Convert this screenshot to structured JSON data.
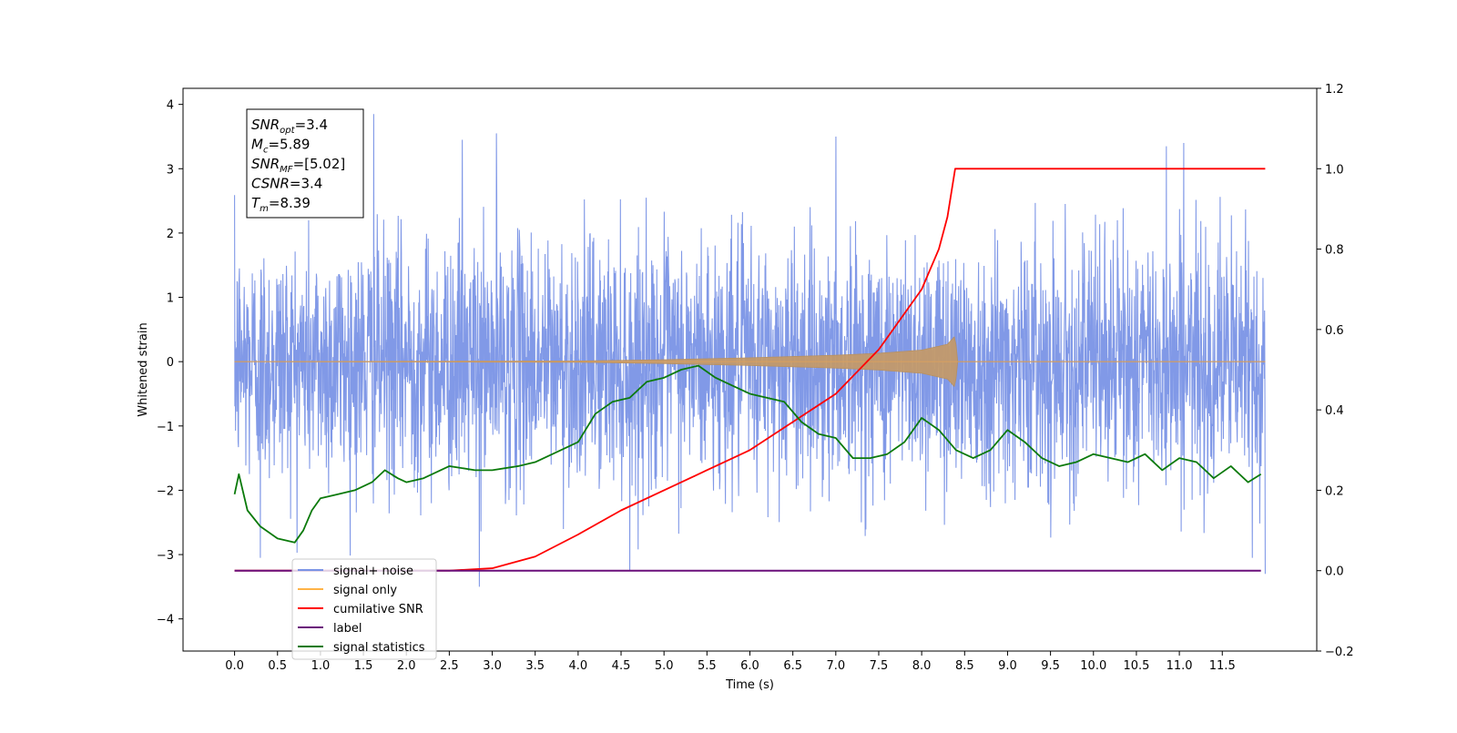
{
  "chart_data": {
    "type": "line",
    "xlabel": "Time (s)",
    "ylabel_left": "Whitened strain",
    "ylabel_right": "",
    "xlim": [
      -0.6,
      12.6
    ],
    "ylim_left": [
      -4.5,
      4.25
    ],
    "ylim_right": [
      -0.2,
      1.2
    ],
    "x_ticks": [
      "0.0",
      "0.5",
      "1.0",
      "1.5",
      "2.0",
      "2.5",
      "3.0",
      "3.5",
      "4.0",
      "4.5",
      "5.0",
      "5.5",
      "6.0",
      "6.5",
      "7.0",
      "7.5",
      "8.0",
      "8.5",
      "9.0",
      "9.5",
      "10.0",
      "10.5",
      "11.0",
      "11.5"
    ],
    "y_left_ticks": [
      "4",
      "3",
      "2",
      "1",
      "0",
      "−1",
      "−2",
      "−3",
      "−4"
    ],
    "y_right_ticks": [
      "1.2",
      "1.0",
      "0.8",
      "0.6",
      "0.4",
      "0.2",
      "0.0",
      "−0.2"
    ],
    "grid": false,
    "legend_position": "lower-left",
    "annotation_box": {
      "lines": [
        {
          "label_main": "SNR",
          "label_sub": "opt",
          "value": "=3.4"
        },
        {
          "label_main": "M",
          "label_sub": "c",
          "value": "=5.89"
        },
        {
          "label_main": "SNR",
          "label_sub": "MF",
          "value": "=[5.02]"
        },
        {
          "label_main": "CSNR",
          "label_sub": "",
          "value": "=3.4"
        },
        {
          "label_main": "T",
          "label_sub": "m",
          "value": "=8.39"
        }
      ]
    },
    "series": [
      {
        "name": "signal+ noise",
        "axis": "left",
        "color": "#7a93e6",
        "style": "dense noise around 0, typical amplitude ±1.3, occasional spikes",
        "x_range": [
          0.0,
          12.0
        ],
        "peaks": [
          {
            "x": 1.62,
            "y": 3.85
          },
          {
            "x": 2.65,
            "y": 3.45
          },
          {
            "x": 3.05,
            "y": 3.55
          },
          {
            "x": 7.0,
            "y": 3.5
          },
          {
            "x": 10.85,
            "y": 3.35
          },
          {
            "x": 11.05,
            "y": 3.4
          },
          {
            "x": 2.85,
            "y": -3.5
          },
          {
            "x": 4.6,
            "y": -3.25
          },
          {
            "x": 0.3,
            "y": -3.05
          },
          {
            "x": 11.85,
            "y": -3.05
          },
          {
            "x": 12.0,
            "y": -3.3
          }
        ]
      },
      {
        "name": "signal only",
        "axis": "left",
        "color": "#ffb347",
        "style": "chirp: amplitude grows from ~0 to ~0.4 at x=8.39 then drops to 0",
        "envelope": [
          {
            "x": 0.0,
            "a": 0.0
          },
          {
            "x": 4.0,
            "a": 0.01
          },
          {
            "x": 5.0,
            "a": 0.03
          },
          {
            "x": 6.0,
            "a": 0.06
          },
          {
            "x": 7.0,
            "a": 0.1
          },
          {
            "x": 7.5,
            "a": 0.13
          },
          {
            "x": 8.0,
            "a": 0.18
          },
          {
            "x": 8.3,
            "a": 0.27
          },
          {
            "x": 8.39,
            "a": 0.4
          },
          {
            "x": 8.42,
            "a": 0.0
          },
          {
            "x": 12.0,
            "a": 0.0
          }
        ]
      },
      {
        "name": "cumilative SNR",
        "axis": "right",
        "color": "#ff0000",
        "x": [
          0.0,
          2.5,
          3.0,
          3.5,
          4.0,
          4.5,
          5.0,
          5.5,
          6.0,
          6.5,
          7.0,
          7.5,
          8.0,
          8.2,
          8.3,
          8.39,
          12.0
        ],
        "y": [
          0.0,
          0.0,
          0.006,
          0.035,
          0.09,
          0.15,
          0.2,
          0.25,
          0.3,
          0.37,
          0.44,
          0.55,
          0.7,
          0.8,
          0.88,
          1.0,
          1.0
        ]
      },
      {
        "name": "label",
        "axis": "right",
        "color": "#6a0f7a",
        "x": [
          0.0,
          11.95
        ],
        "y": [
          0.0,
          0.0
        ]
      },
      {
        "name": "signal statistics",
        "axis": "right",
        "color": "#0b7a0b",
        "x": [
          0.0,
          0.05,
          0.15,
          0.3,
          0.5,
          0.7,
          0.8,
          0.9,
          1.0,
          1.2,
          1.4,
          1.6,
          1.75,
          1.9,
          2.0,
          2.2,
          2.5,
          2.8,
          3.0,
          3.3,
          3.5,
          3.8,
          4.0,
          4.2,
          4.4,
          4.6,
          4.8,
          5.0,
          5.2,
          5.4,
          5.6,
          5.8,
          6.0,
          6.2,
          6.4,
          6.6,
          6.8,
          7.0,
          7.2,
          7.4,
          7.6,
          7.8,
          8.0,
          8.2,
          8.4,
          8.6,
          8.8,
          9.0,
          9.2,
          9.4,
          9.6,
          9.8,
          10.0,
          10.2,
          10.4,
          10.6,
          10.8,
          11.0,
          11.2,
          11.4,
          11.6,
          11.8,
          11.95
        ],
        "y": [
          0.19,
          0.24,
          0.15,
          0.11,
          0.08,
          0.07,
          0.1,
          0.15,
          0.18,
          0.19,
          0.2,
          0.22,
          0.25,
          0.23,
          0.22,
          0.23,
          0.26,
          0.25,
          0.25,
          0.26,
          0.27,
          0.3,
          0.32,
          0.39,
          0.42,
          0.43,
          0.47,
          0.48,
          0.5,
          0.51,
          0.48,
          0.46,
          0.44,
          0.43,
          0.42,
          0.37,
          0.34,
          0.33,
          0.28,
          0.28,
          0.29,
          0.32,
          0.38,
          0.35,
          0.3,
          0.28,
          0.3,
          0.35,
          0.32,
          0.28,
          0.26,
          0.27,
          0.29,
          0.28,
          0.27,
          0.29,
          0.25,
          0.28,
          0.27,
          0.23,
          0.26,
          0.22,
          0.24
        ]
      }
    ]
  }
}
